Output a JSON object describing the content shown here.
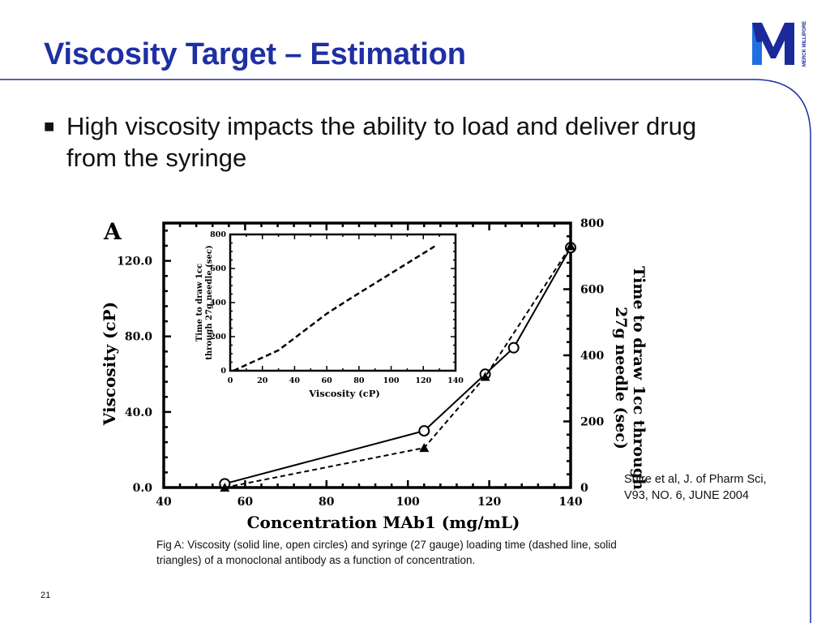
{
  "slide": {
    "title": "Viscosity Target – Estimation",
    "bullet": "High viscosity impacts the ability to load and deliver drug from the syringe",
    "bullet_marker": "■",
    "citation_line1": "Shire et al, J. of Pharm Sci,",
    "citation_line2": "V93, NO. 6, JUNE 2004",
    "caption": "Fig A: Viscosity (solid line, open circles) and syringe (27 gauge) loading time (dashed line, solid triangles) of a monoclonal antibody as a function of concentration.",
    "page_number": "21",
    "logo_letter": "M",
    "logo_text": "MERCK MILLIPORE"
  },
  "colors": {
    "title": "#1f2fa3",
    "frame": "#1f2fa3",
    "logo_blue": "#1f6fe0",
    "logo_dark": "#1a2a9a"
  },
  "chart_data": [
    {
      "type": "line",
      "panel_label": "A",
      "xlabel": "Concentration MAb1 (mg/mL)",
      "ylabel": "Viscosity (cP)",
      "y2label": "Time to draw 1cc through 27g needle (sec)",
      "xlim": [
        40,
        140
      ],
      "ylim": [
        0,
        140
      ],
      "y2lim": [
        0,
        800
      ],
      "x_ticks": [
        "40",
        "60",
        "80",
        "100",
        "120",
        "140"
      ],
      "y_ticks": [
        "0.0",
        "40.0",
        "80.0",
        "120.0"
      ],
      "y2_ticks": [
        "0",
        "200",
        "400",
        "600",
        "800"
      ],
      "series": [
        {
          "axis": "left",
          "style": "solid line, open circles",
          "x": [
            55,
            104,
            119,
            126,
            140
          ],
          "y": [
            2,
            30,
            60,
            74,
            127
          ]
        },
        {
          "axis": "right",
          "style": "dashed line, solid triangles",
          "x": [
            55,
            104,
            119,
            140
          ],
          "y": [
            0,
            120,
            335,
            730
          ]
        }
      ]
    },
    {
      "type": "line",
      "inset": true,
      "xlabel": "Viscosity (cP)",
      "ylabel": "Time to draw 1cc through 27g needle (sec)",
      "xlim": [
        0,
        140
      ],
      "ylim": [
        0,
        800
      ],
      "x_ticks": [
        "0",
        "20",
        "40",
        "60",
        "80",
        "100",
        "120",
        "140"
      ],
      "y_ticks": [
        "0",
        "200",
        "400",
        "600",
        "800"
      ],
      "series": [
        {
          "style": "dashed line",
          "x": [
            2,
            30,
            60,
            74,
            127
          ],
          "y": [
            0,
            120,
            335,
            420,
            730
          ]
        }
      ]
    }
  ]
}
